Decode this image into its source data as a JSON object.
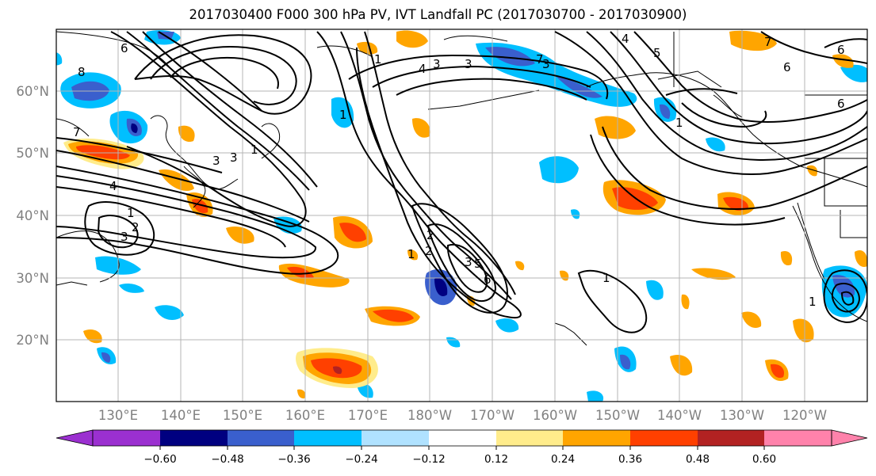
{
  "title": "2017030400 F000 300 hPa PV, IVT Landfall PC (2017030700 - 2017030900)",
  "lat_labels": [
    "60°N",
    "50°N",
    "40°N",
    "30°N",
    "20°N"
  ],
  "lon_labels": [
    "130°E",
    "140°E",
    "150°E",
    "160°E",
    "170°E",
    "180°W",
    "170°W",
    "160°W",
    "150°W",
    "140°W",
    "130°W",
    "120°W"
  ],
  "colorbar": {
    "colors": [
      "#9b30d0",
      "#000080",
      "#3a5fcd",
      "#00bfff",
      "#b0e2ff",
      "#ffffff",
      "#ffec8b",
      "#ffa500",
      "#ff4000",
      "#b22222",
      "#ff82ab"
    ],
    "tick_labels": [
      "−0.60",
      "−0.48",
      "−0.36",
      "−0.24",
      "−0.12",
      "0.12",
      "0.24",
      "0.36",
      "0.48",
      "0.60"
    ]
  },
  "contour_labels": [
    "6",
    "8",
    "7",
    "4",
    "3",
    "3",
    "3",
    "2",
    "1",
    "1",
    "3",
    "2",
    "5",
    "6",
    "4",
    "3",
    "1",
    "3",
    "4",
    "5",
    "7",
    "6",
    "6",
    "6",
    "1",
    "1",
    "2",
    "3",
    "1",
    "7",
    "1",
    "1"
  ]
}
